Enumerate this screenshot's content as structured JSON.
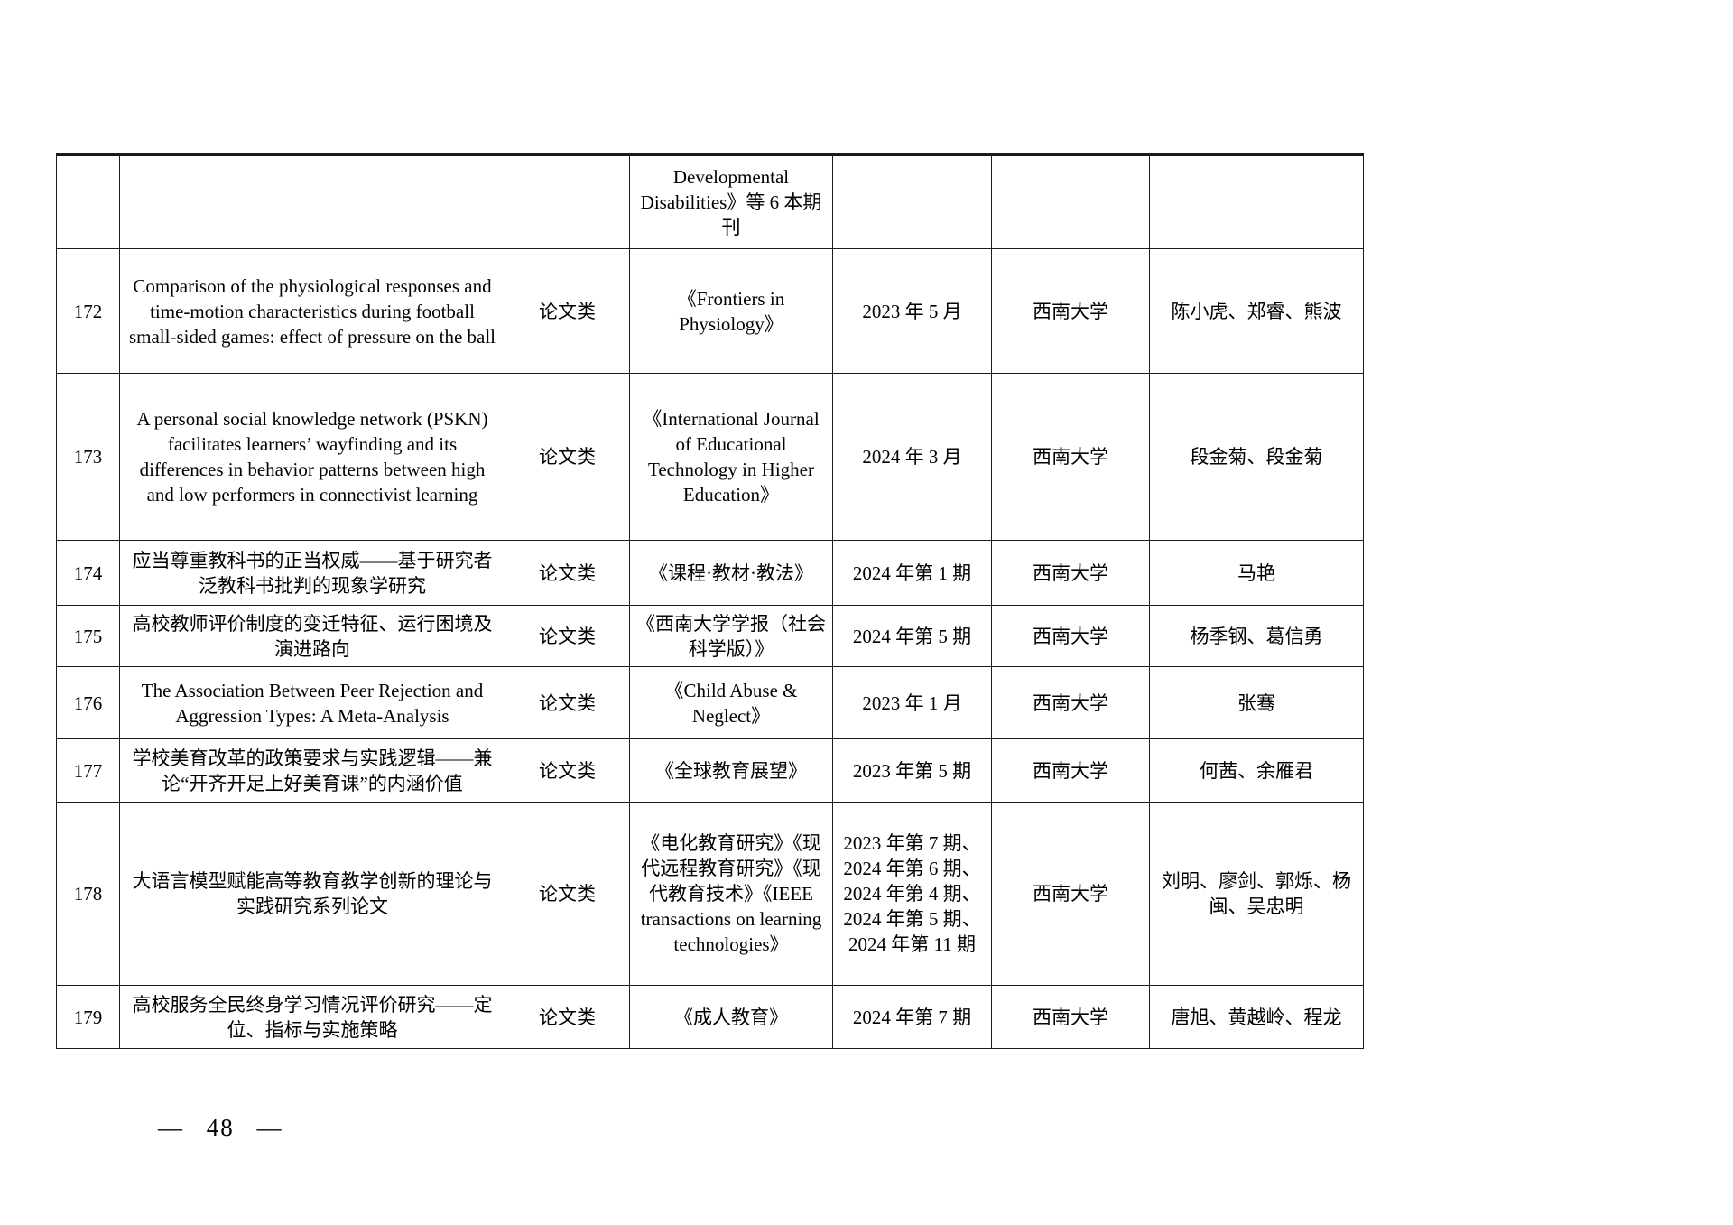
{
  "page": {
    "page_number_label": "— 48 —"
  },
  "table": {
    "rows": [
      {
        "no": "",
        "title": "",
        "type": "",
        "journal": "Developmental Disabilities》等 6 本期刊",
        "date": "",
        "unit": "",
        "authors": ""
      },
      {
        "no": "172",
        "title": "Comparison of the physiological responses and time-motion characteristics during football small-sided games: effect of pressure on the ball",
        "type": "论文类",
        "journal": "《Frontiers in Physiology》",
        "date": "2023 年 5 月",
        "unit": "西南大学",
        "authors": "陈小虎、郑睿、熊波"
      },
      {
        "no": "173",
        "title": "A personal social knowledge network (PSKN) facilitates learners’ wayfinding and its differences in behavior patterns between high and low performers in connectivist learning",
        "type": "论文类",
        "journal": "《International Journal of Educational Technology in Higher Education》",
        "date": "2024 年 3 月",
        "unit": "西南大学",
        "authors": "段金菊、段金菊"
      },
      {
        "no": "174",
        "title": "应当尊重教科书的正当权威——基于研究者泛教科书批判的现象学研究",
        "type": "论文类",
        "journal": "《课程·教材·教法》",
        "date": "2024 年第 1 期",
        "unit": "西南大学",
        "authors": "马艳"
      },
      {
        "no": "175",
        "title": "高校教师评价制度的变迁特征、运行困境及演进路向",
        "type": "论文类",
        "journal": "《西南大学学报（社会科学版）》",
        "date": "2024 年第 5 期",
        "unit": "西南大学",
        "authors": "杨季钢、葛信勇"
      },
      {
        "no": "176",
        "title": "The Association Between Peer Rejection and Aggression Types: A Meta-Analysis",
        "type": "论文类",
        "journal": "《Child Abuse & Neglect》",
        "date": "2023 年 1 月",
        "unit": "西南大学",
        "authors": "张骞"
      },
      {
        "no": "177",
        "title": "学校美育改革的政策要求与实践逻辑——兼论“开齐开足上好美育课”的内涵价值",
        "type": "论文类",
        "journal": "《全球教育展望》",
        "date": "2023 年第 5 期",
        "unit": "西南大学",
        "authors": "何茜、余雁君"
      },
      {
        "no": "178",
        "title": "大语言模型赋能高等教育教学创新的理论与实践研究系列论文",
        "type": "论文类",
        "journal": "《电化教育研究》《现代远程教育研究》《现代教育技术》《IEEE transactions on learning technologies》",
        "date": "2023 年第 7 期、2024 年第 6 期、2024 年第 4 期、2024 年第 5 期、2024 年第 11 期",
        "unit": "西南大学",
        "authors": "刘明、廖剑、郭烁、杨闽、吴忠明"
      },
      {
        "no": "179",
        "title": "高校服务全民终身学习情况评价研究——定位、指标与实施策略",
        "type": "论文类",
        "journal": "《成人教育》",
        "date": "2024 年第 7 期",
        "unit": "西南大学",
        "authors": "唐旭、黄越岭、程龙"
      }
    ]
  }
}
